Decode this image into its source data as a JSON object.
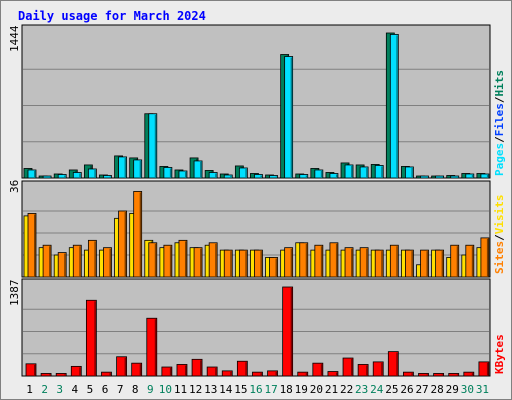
{
  "title": "Daily usage for March 2024",
  "colors": {
    "background": "#ececec",
    "plot_bg": "#c0c0c0",
    "title": "#0000ff",
    "hits": "#00805c",
    "files": "#00e0ff",
    "sites": "#ff8000",
    "visits": "#ffe000",
    "kbytes": "#ff0000",
    "weekend_label": "#00805c",
    "weekday_label": "#000000"
  },
  "chart_data": [
    {
      "type": "bar",
      "name": "hits-files",
      "ymax_label": "1444",
      "ylim": [
        0,
        1444
      ],
      "legend": [
        {
          "label": "Pages",
          "color": "#00e0ff"
        },
        {
          "label": "/",
          "color": "#000000"
        },
        {
          "label": "Files",
          "color": "#0040ff"
        },
        {
          "label": "/",
          "color": "#000000"
        },
        {
          "label": "Hits",
          "color": "#00805c"
        }
      ],
      "categories": [
        "1",
        "2",
        "3",
        "4",
        "5",
        "6",
        "7",
        "8",
        "9",
        "10",
        "11",
        "12",
        "13",
        "14",
        "15",
        "16",
        "17",
        "18",
        "19",
        "20",
        "21",
        "22",
        "23",
        "24",
        "25",
        "26",
        "27",
        "28",
        "29",
        "30",
        "31"
      ],
      "series": [
        {
          "name": "Hits",
          "values": [
            95,
            20,
            40,
            80,
            130,
            30,
            220,
            200,
            640,
            115,
            80,
            200,
            75,
            40,
            120,
            45,
            30,
            1230,
            40,
            95,
            55,
            150,
            130,
            135,
            1450,
            115,
            15,
            10,
            25,
            45,
            45
          ]
        },
        {
          "name": "Files",
          "values": [
            80,
            15,
            35,
            55,
            90,
            25,
            210,
            180,
            640,
            105,
            70,
            170,
            55,
            30,
            100,
            35,
            25,
            1210,
            35,
            80,
            45,
            130,
            110,
            125,
            1430,
            110,
            10,
            8,
            20,
            40,
            40
          ]
        }
      ]
    },
    {
      "type": "bar",
      "name": "visits-sites",
      "ymax_label": "36",
      "ylim": [
        0,
        36
      ],
      "legend": [
        {
          "label": "Sites",
          "color": "#ff8000"
        },
        {
          "label": "/",
          "color": "#000000"
        },
        {
          "label": "Visits",
          "color": "#ffe000"
        }
      ],
      "series": [
        {
          "name": "Visits",
          "values": [
            25,
            12,
            9,
            12,
            11,
            11,
            24,
            26,
            15,
            12,
            14,
            12,
            13,
            11,
            11,
            11,
            8,
            11,
            14,
            11,
            11,
            11,
            11,
            11,
            11,
            11,
            5,
            11,
            8,
            9,
            12
          ]
        },
        {
          "name": "Sites",
          "values": [
            26,
            13,
            10,
            13,
            15,
            12,
            27,
            35,
            14,
            13,
            15,
            12,
            14,
            11,
            11,
            11,
            8,
            12,
            14,
            13,
            14,
            12,
            12,
            11,
            13,
            11,
            11,
            11,
            13,
            13,
            16
          ]
        }
      ]
    },
    {
      "type": "bar",
      "name": "kbytes",
      "ymax_label": "1387",
      "ylim": [
        0,
        1387
      ],
      "legend": [
        {
          "label": "KBytes",
          "color": "#ff0000"
        }
      ],
      "series": [
        {
          "name": "KBytes",
          "values": [
            190,
            40,
            40,
            150,
            1180,
            60,
            300,
            200,
            900,
            140,
            180,
            260,
            140,
            80,
            230,
            60,
            80,
            1387,
            60,
            200,
            70,
            280,
            180,
            220,
            380,
            60,
            40,
            40,
            40,
            60,
            220
          ]
        }
      ]
    }
  ],
  "x_labels": [
    "1",
    "2",
    "3",
    "4",
    "5",
    "6",
    "7",
    "8",
    "9",
    "10",
    "11",
    "12",
    "13",
    "14",
    "15",
    "16",
    "17",
    "18",
    "19",
    "20",
    "21",
    "22",
    "23",
    "24",
    "25",
    "26",
    "27",
    "28",
    "29",
    "30",
    "31"
  ],
  "weekend_days": [
    2,
    3,
    9,
    10,
    16,
    17,
    23,
    24,
    30,
    31
  ]
}
